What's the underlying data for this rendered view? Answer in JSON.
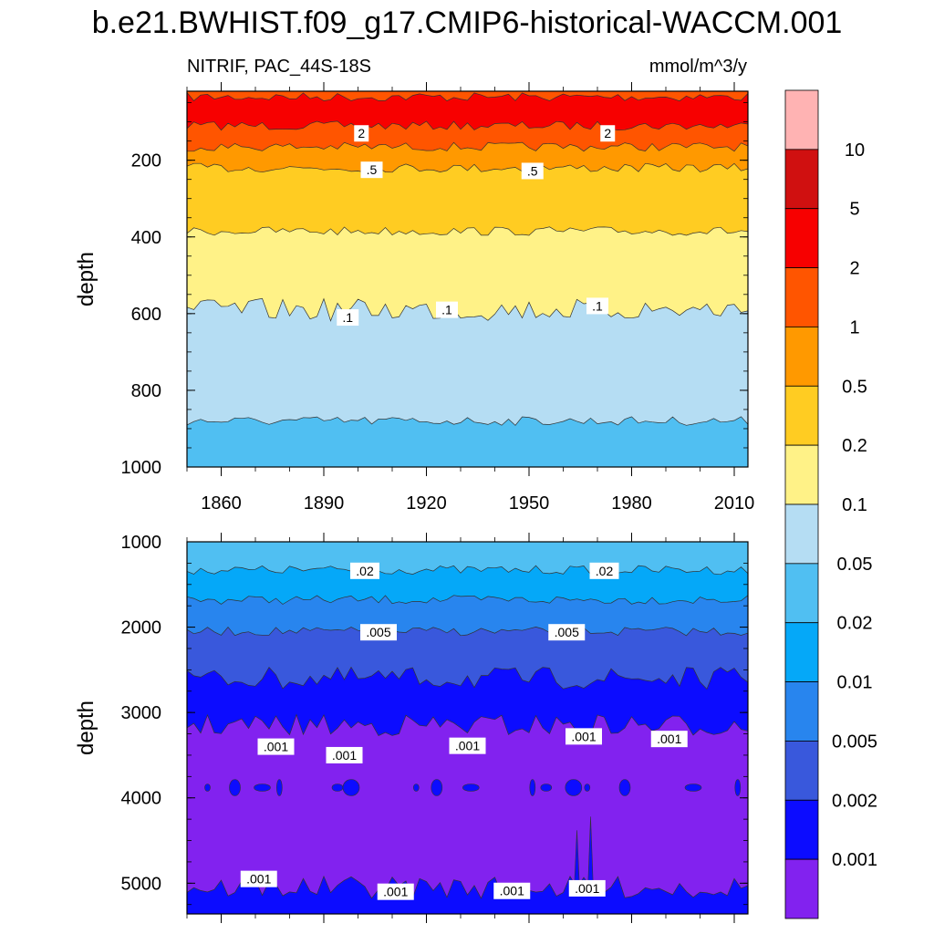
{
  "title": "b.e21.BWHIST.f09_g17.CMIP6-historical-WACCM.001",
  "subtitle_left": "NITRIF, PAC_44S-18S",
  "subtitle_right": "mmol/m^3/y",
  "chart_data": [
    {
      "type": "heatmap",
      "panel": "upper",
      "xlabel": "",
      "ylabel": "depth",
      "x_tick_labels": [
        "1860",
        "1890",
        "1920",
        "1950",
        "1980",
        "2010"
      ],
      "x_ticks": [
        1860,
        1890,
        1920,
        1950,
        1980,
        2010
      ],
      "xlim": [
        1850,
        2014
      ],
      "y_tick_labels": [
        "200",
        "400",
        "600",
        "800",
        "1000"
      ],
      "y_ticks": [
        200,
        400,
        600,
        800,
        1000
      ],
      "ylim": [
        20,
        1000
      ],
      "y_reversed": true,
      "bands": [
        {
          "range": "1-2",
          "top": 20,
          "bottom": 35,
          "color": "#ff5500"
        },
        {
          "range": "2-5",
          "top": 35,
          "bottom": 110,
          "color": "#f70000"
        },
        {
          "range": "1-2",
          "top": 110,
          "bottom": 165,
          "color": "#ff5500"
        },
        {
          "range": "0.5-1",
          "top": 165,
          "bottom": 220,
          "color": "#ff9900"
        },
        {
          "range": "0.2-0.5",
          "top": 220,
          "bottom": 385,
          "color": "#ffcc22"
        },
        {
          "range": "0.1-0.2",
          "top": 385,
          "bottom": 590,
          "color": "#fff287"
        },
        {
          "range": "0.05-0.1",
          "top": 590,
          "bottom": 880,
          "color": "#b5ddf3"
        },
        {
          "range": "0.02-0.05",
          "top": 880,
          "bottom": 1000,
          "color": "#50bff2"
        }
      ],
      "contour_labels": [
        {
          "text": "2",
          "x": 1901,
          "depth": 130
        },
        {
          "text": "2",
          "x": 1973,
          "depth": 130
        },
        {
          "text": ".5",
          "x": 1904,
          "depth": 225
        },
        {
          "text": ".5",
          "x": 1951,
          "depth": 228
        },
        {
          "text": ".1",
          "x": 1897,
          "depth": 610
        },
        {
          "text": ".1",
          "x": 1926,
          "depth": 590
        },
        {
          "text": ".1",
          "x": 1970,
          "depth": 580
        }
      ]
    },
    {
      "type": "heatmap",
      "panel": "lower",
      "xlabel": "",
      "ylabel": "depth",
      "x_ticks": [
        1860,
        1890,
        1920,
        1950,
        1980,
        2010
      ],
      "xlim": [
        1850,
        2014
      ],
      "y_tick_labels": [
        "1000",
        "2000",
        "3000",
        "4000",
        "5000"
      ],
      "y_ticks": [
        1000,
        2000,
        3000,
        4000,
        5000
      ],
      "ylim": [
        1000,
        5360
      ],
      "y_reversed": true,
      "bands": [
        {
          "range": "0.02-0.05",
          "top": 1000,
          "bottom": 1330,
          "color": "#50bff2"
        },
        {
          "range": "0.01-0.02",
          "top": 1330,
          "bottom": 1680,
          "color": "#05a8f8"
        },
        {
          "range": "0.005-0.01",
          "top": 1680,
          "bottom": 2050,
          "color": "#2885ee"
        },
        {
          "range": "0.002-0.005",
          "top": 2050,
          "bottom": 2600,
          "color": "#3958dc"
        },
        {
          "range": "0.001-0.002",
          "top": 2600,
          "bottom": 3150,
          "color": "#0c0cff"
        },
        {
          "range": "<0.001",
          "top": 3150,
          "bottom": 5050,
          "color": "#8222ef"
        },
        {
          "range": "0.001-0.002",
          "top": 5050,
          "bottom": 5360,
          "color": "#0c0cff"
        }
      ],
      "contour_labels": [
        {
          "text": ".02",
          "x": 1902,
          "depth": 1340
        },
        {
          "text": ".02",
          "x": 1972,
          "depth": 1340
        },
        {
          "text": ".005",
          "x": 1906,
          "depth": 2060
        },
        {
          "text": ".005",
          "x": 1961,
          "depth": 2060
        },
        {
          "text": ".001",
          "x": 1876,
          "depth": 3400
        },
        {
          "text": ".001",
          "x": 1896,
          "depth": 3500
        },
        {
          "text": ".001",
          "x": 1932,
          "depth": 3390
        },
        {
          "text": ".001",
          "x": 1966,
          "depth": 3280
        },
        {
          "text": ".001",
          "x": 1991,
          "depth": 3310
        },
        {
          "text": ".001",
          "x": 1871,
          "depth": 4950
        },
        {
          "text": ".001",
          "x": 1911,
          "depth": 5100
        },
        {
          "text": ".001",
          "x": 1945,
          "depth": 5090
        },
        {
          "text": ".001",
          "x": 1967,
          "depth": 5060
        }
      ]
    }
  ],
  "colorbar": {
    "labels": [
      "10",
      "5",
      "2",
      "1",
      "0.5",
      "0.2",
      "0.1",
      "0.05",
      "0.02",
      "0.01",
      "0.005",
      "0.002",
      "0.001"
    ],
    "colors": [
      "#ffb3b3",
      "#d01010",
      "#f70000",
      "#ff5500",
      "#ff9900",
      "#ffcc22",
      "#fff287",
      "#b5ddf3",
      "#50bff2",
      "#05a8f8",
      "#2885ee",
      "#3958dc",
      "#0c0cff",
      "#8222ef"
    ]
  }
}
